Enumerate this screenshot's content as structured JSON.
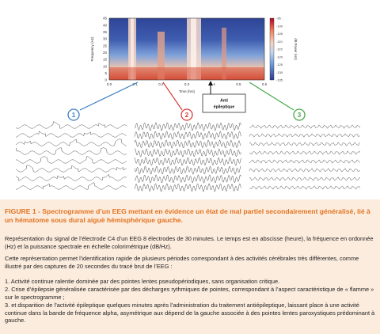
{
  "spectrogram": {
    "y_ticks": [
      "45",
      "40",
      "35",
      "30",
      "25",
      "20",
      "15",
      "10",
      "5",
      "0"
    ],
    "x_ticks": [
      "0.0",
      "0.1",
      "0.2",
      "0.3",
      "0.4",
      "0.5",
      "0.6"
    ],
    "ylabel": "Frequency (Hz)",
    "xlabel": "Time (hrs)",
    "colorbar_ticks": [
      "-95",
      "-100",
      "-105",
      "-110",
      "-115",
      "-120",
      "-125",
      "-130",
      "-135"
    ],
    "colorbar_label": "dB Power (Hz)",
    "annotation": "Anti\népileptique"
  },
  "markers": [
    {
      "label": "1",
      "color": "#3f7fc0"
    },
    {
      "label": "2",
      "color": "#d93c3c"
    },
    {
      "label": "3",
      "color": "#49a84a"
    }
  ],
  "caption": {
    "title": "FIGURE 1 - Spectrogramme d’un EEG mettant en évidence un état de mal partiel secondairement généralisé, lié à un hématome sous dural aiguë hémisphérique gauche.",
    "p1": "Représentation du signal de l’électrode C4 d’un EEG 8 électrodes de 30 minutes. Le temps est en abscisse (heure), la fréquence en ordonnée (Hz) et la puissance spectrale en échelle colorimétrique (dB/Hz).",
    "p2": "Cette représentation permet l’identification rapide de plusieurs périodes correspondant à des activités cérébrales très différentes, comme illustré par des captures de 20 secondes du tracé brut de l’EEG :",
    "item1": "1. Activité continue ralentie dominée par des pointes lentes pseudopériodiques, sans organisation critique.",
    "item2": "2. Crise d’épilepsie généralisée caractérisée par des décharges rythmiques de pointes, correspondant à l’aspect caractéristique de « flamme » sur le spectrogramme ;",
    "item3": "3. et disparition de l’activité épileptique quelques minutes après l’administration du traitement antiépileptique, laissant place à une activité continue dans la bande de fréquence alpha, asymétrique aux dépend de la gauche associée à des pointes lentes paroxystiques prédominant à gauche."
  }
}
